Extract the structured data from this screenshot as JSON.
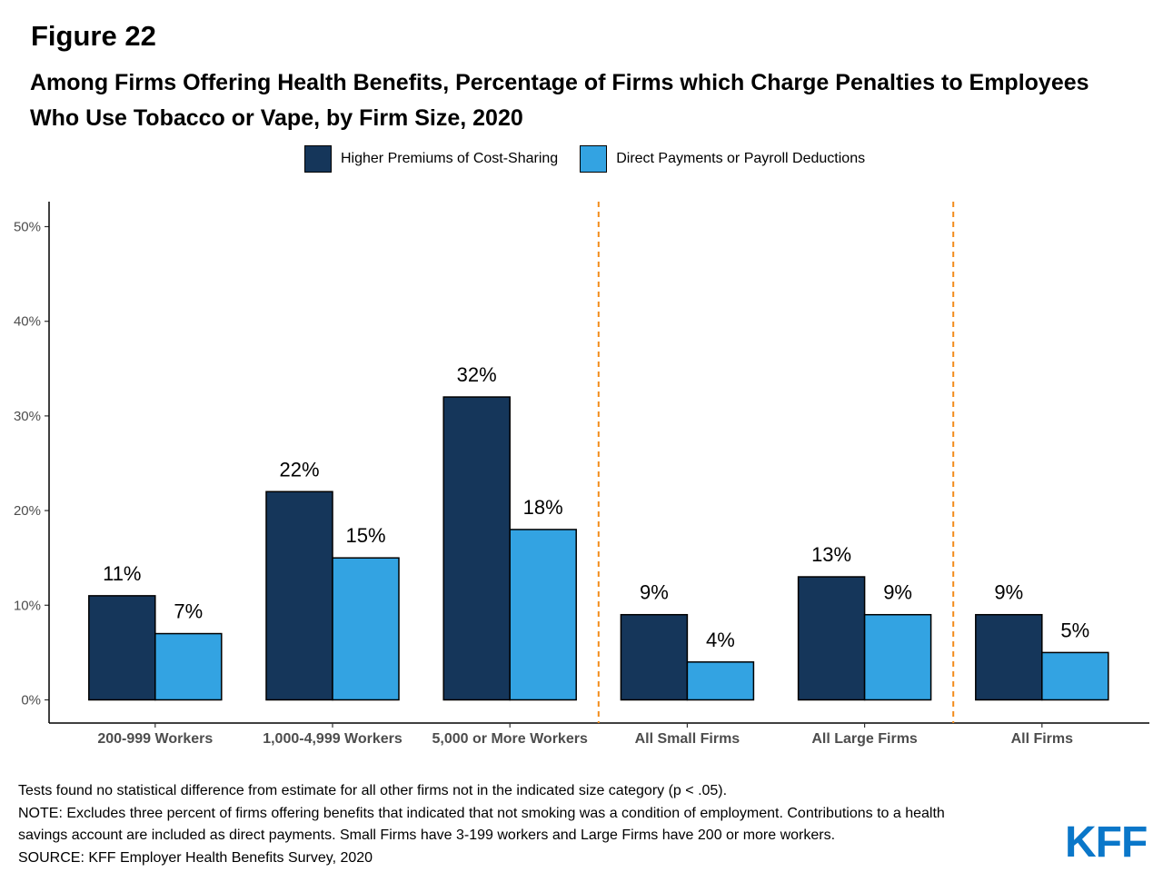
{
  "figure_label": "Figure 22",
  "title": "Among Firms Offering Health Benefits, Percentage of Firms which Charge Penalties to Employees Who Use Tobacco or Vape, by Firm Size, 2020",
  "colors": {
    "higher_premiums": "#15365a",
    "direct_payments": "#33a3e2",
    "divider": "#f28c1c"
  },
  "chart_data": {
    "type": "bar",
    "categories": [
      "200-999 Workers",
      "1,000-4,999 Workers",
      "5,000 or More Workers",
      "All Small Firms",
      "All Large Firms",
      "All Firms"
    ],
    "series": [
      {
        "name": "Higher Premiums of Cost-Sharing",
        "values": [
          11,
          22,
          32,
          9,
          13,
          9
        ],
        "labels": [
          "11%",
          "22%",
          "32%",
          "9%",
          "13%",
          "9%"
        ]
      },
      {
        "name": "Direct Payments or Payroll Deductions",
        "values": [
          7,
          15,
          18,
          4,
          9,
          5
        ],
        "labels": [
          "7%",
          "15%",
          "18%",
          "4%",
          "9%",
          "5%"
        ]
      }
    ],
    "yticks": [
      0,
      10,
      20,
      30,
      40,
      50
    ],
    "ytick_labels": [
      "0%",
      "10%",
      "20%",
      "30%",
      "40%",
      "50%"
    ],
    "ylim": [
      0,
      52
    ],
    "group_dividers_after": [
      3,
      5
    ],
    "legend_position": "top"
  },
  "notes": [
    "Tests found no statistical difference from estimate for all other firms not in the indicated size category (p < .05).",
    "NOTE: Excludes three percent of firms offering benefits that indicated that not smoking was a condition of employment.  Contributions to a health",
    "savings account are included as direct payments. Small Firms have 3-199 workers and Large Firms have 200 or more workers.",
    "SOURCE: KFF Employer Health Benefits Survey, 2020"
  ],
  "logo": "KFF"
}
